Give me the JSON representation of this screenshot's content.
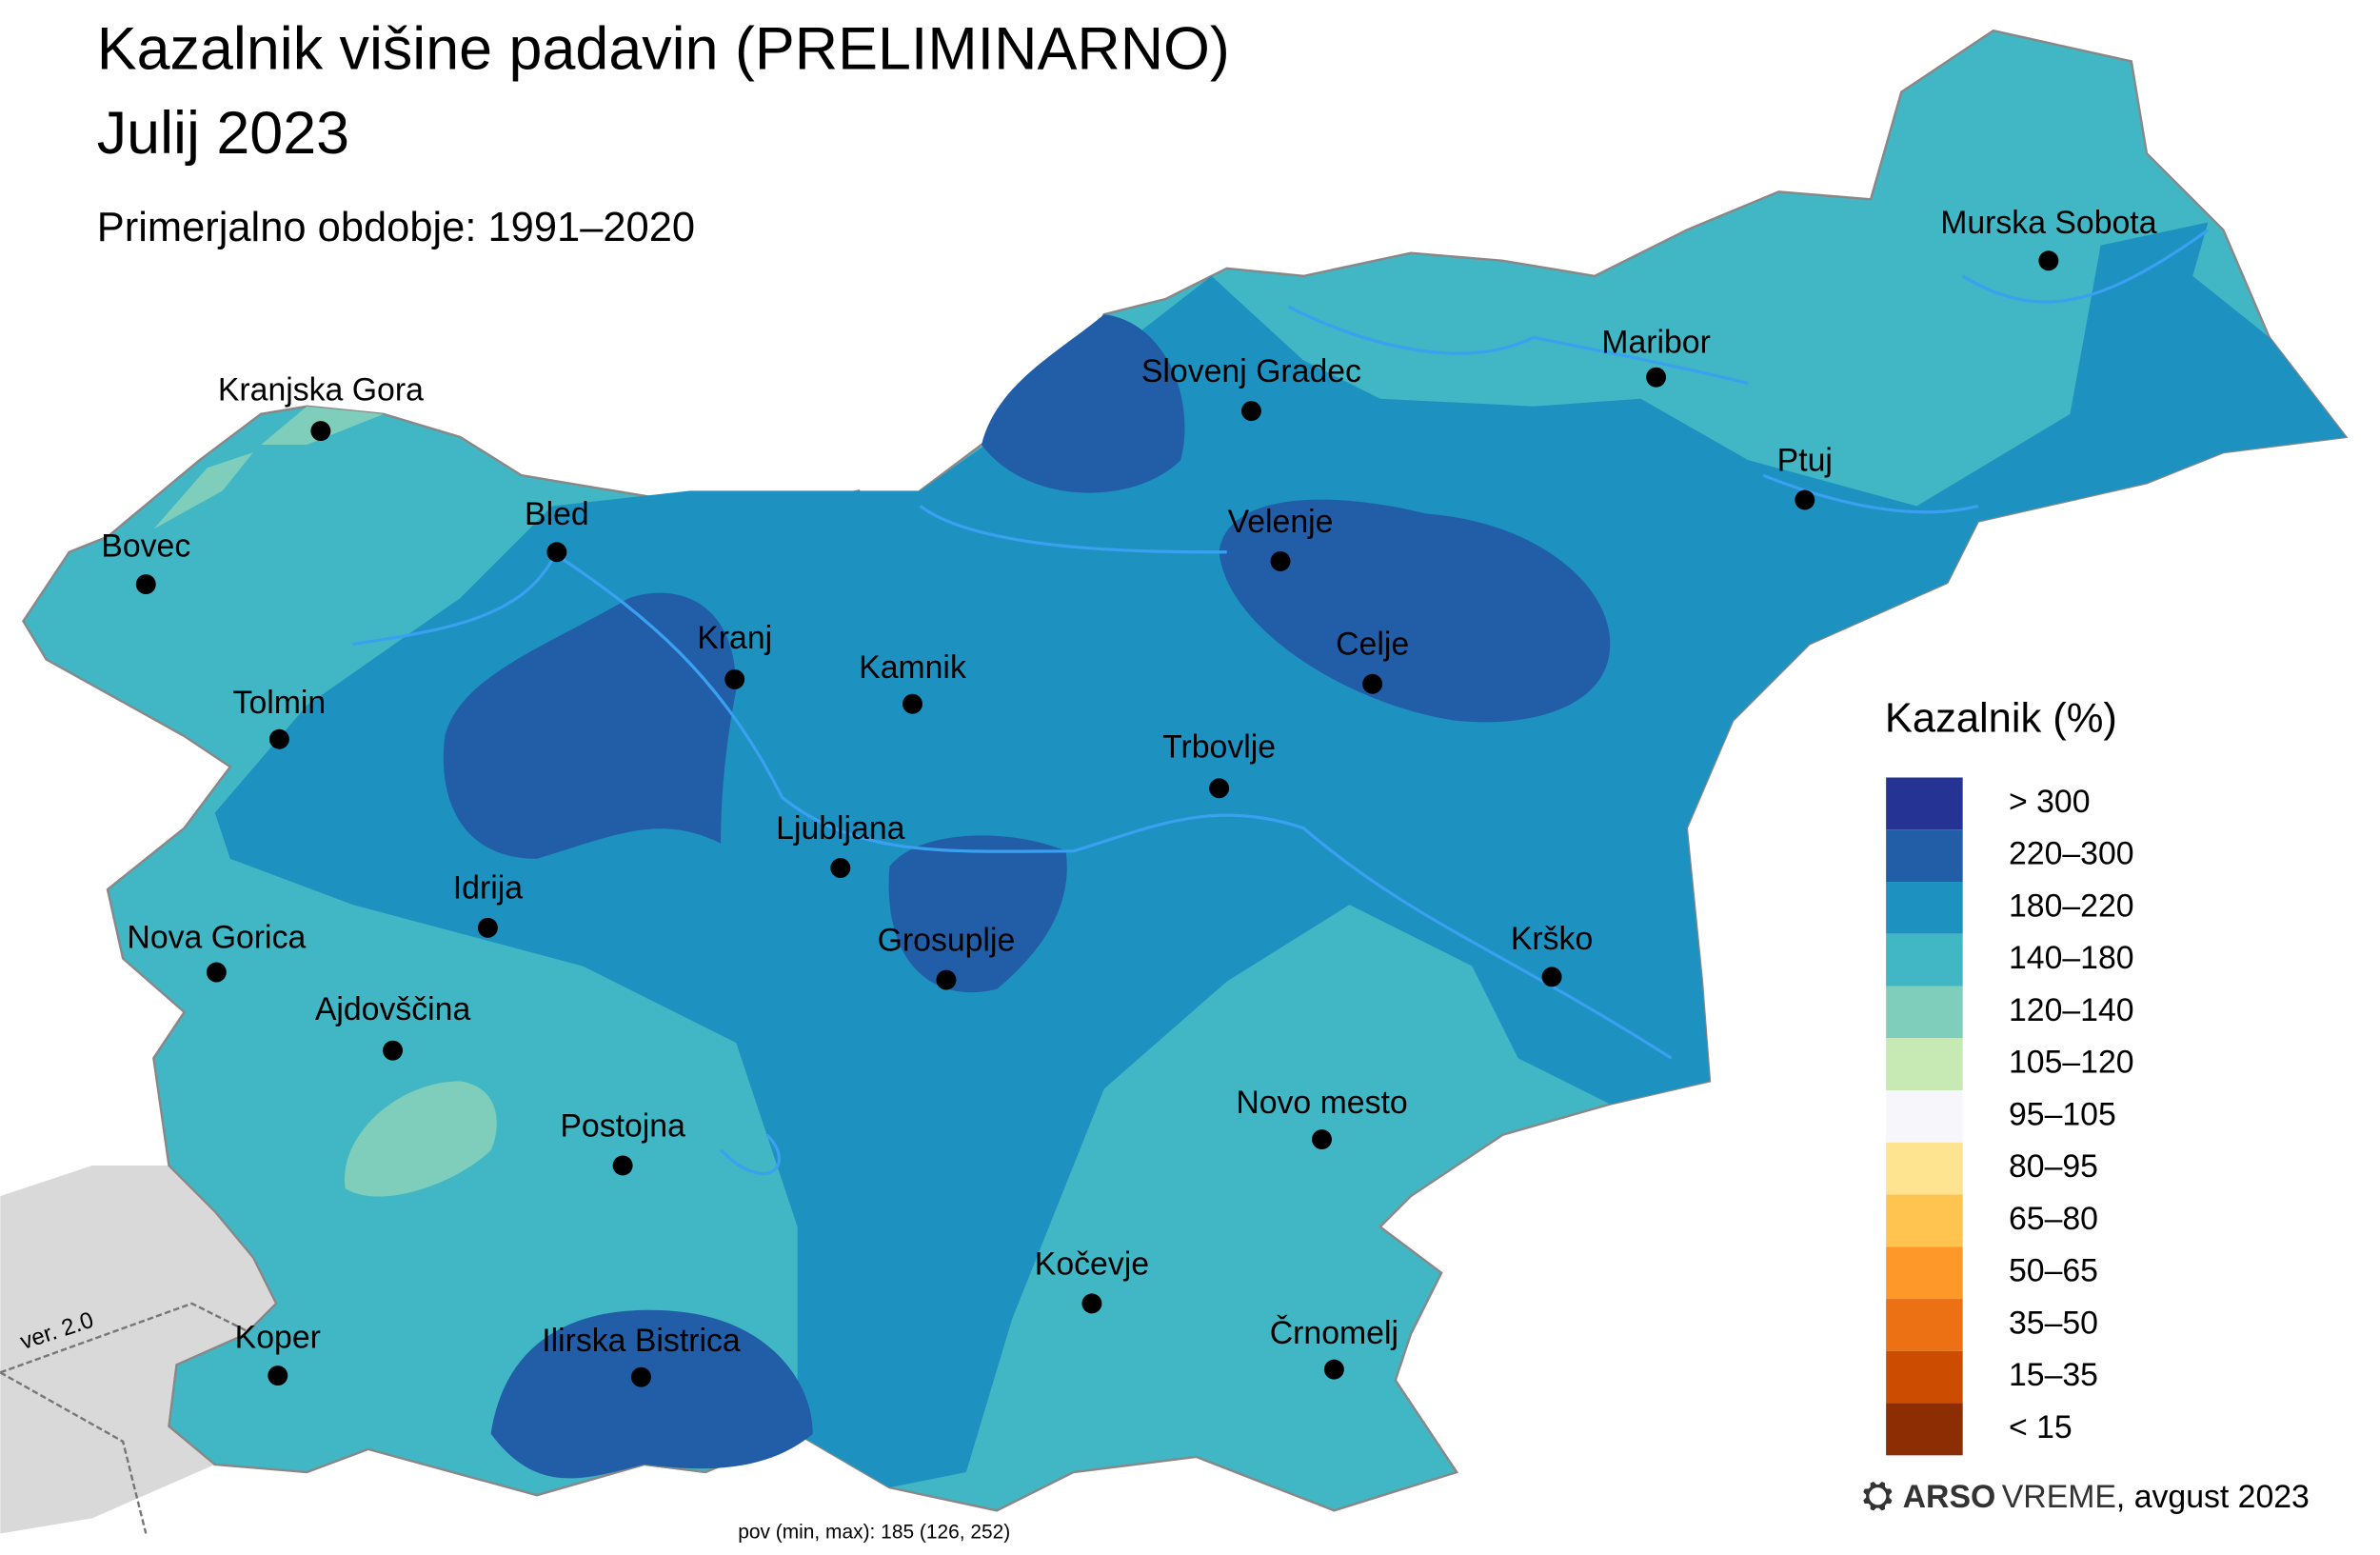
{
  "header": {
    "title_line1": "Kazalnik višine padavin (PRELIMINARNO)",
    "title_line2": "Julij 2023",
    "subtitle": "Primerjalno obdobje: 1991–2020"
  },
  "cities": [
    {
      "label": "Kranjska Gora"
    },
    {
      "label": "Bovec"
    },
    {
      "label": "Bled"
    },
    {
      "label": "Kranj"
    },
    {
      "label": "Tolmin"
    },
    {
      "label": "Kamnik"
    },
    {
      "label": "Slovenj Gradec"
    },
    {
      "label": "Maribor"
    },
    {
      "label": "Murska Sobota"
    },
    {
      "label": "Ptuj"
    },
    {
      "label": "Velenje"
    },
    {
      "label": "Celje"
    },
    {
      "label": "Trbovlje"
    },
    {
      "label": "Ljubljana"
    },
    {
      "label": "Idrija"
    },
    {
      "label": "Nova Gorica"
    },
    {
      "label": "Grosuplje"
    },
    {
      "label": "Krško"
    },
    {
      "label": "Ajdovščina"
    },
    {
      "label": "Postojna"
    },
    {
      "label": "Novo mesto"
    },
    {
      "label": "Kočevje"
    },
    {
      "label": "Koper"
    },
    {
      "label": "Ilirska Bistrica"
    },
    {
      "label": "Črnomelj"
    }
  ],
  "legend": {
    "title": "Kazalnik (%)",
    "items": [
      {
        "label": "> 300",
        "color": "#253494"
      },
      {
        "label": "220–300",
        "color": "#225ea8"
      },
      {
        "label": "180–220",
        "color": "#1d91c0"
      },
      {
        "label": "140–180",
        "color": "#41b6c4"
      },
      {
        "label": "120–140",
        "color": "#7fcdbb"
      },
      {
        "label": "105–120",
        "color": "#c7e9b4"
      },
      {
        "label": "95–105",
        "color": "#f7f7fb"
      },
      {
        "label": "80–95",
        "color": "#fee391"
      },
      {
        "label": "65–80",
        "color": "#fec44f"
      },
      {
        "label": "50–65",
        "color": "#fe9929"
      },
      {
        "label": "35–50",
        "color": "#ec7014"
      },
      {
        "label": "15–35",
        "color": "#cc4c02"
      },
      {
        "label": "< 15",
        "color": "#8c2d04"
      }
    ]
  },
  "footer": {
    "brand": "ARSO",
    "product": "VREME",
    "date": ", avgust 2023"
  },
  "stats": "pov (min, max): 185 (126, 252)",
  "version": "ver. 2.0"
}
